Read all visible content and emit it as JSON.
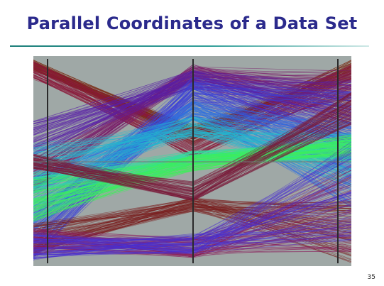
{
  "slide": {
    "title": "Parallel Coordinates of a Data Set",
    "page_number": "35"
  },
  "plot": {
    "background": "#9fa8a6",
    "axis_color": "#2a2a2a",
    "midline_color": "#6f7877",
    "axis_count": 3,
    "palette": [
      "#7a1f1f",
      "#8b1a5a",
      "#6a1fa0",
      "#3f3fd6",
      "#2f7fe0",
      "#22c6c0",
      "#3cf06a"
    ],
    "bundles": [
      {
        "color": "#7a2a12",
        "from": [
          0.03,
          0.08
        ],
        "mid": [
          0.32,
          0.42
        ],
        "to": [
          0.03,
          0.12
        ]
      },
      {
        "color": "#8b1a3a",
        "from": [
          0.04,
          0.12
        ],
        "mid": [
          0.35,
          0.5
        ],
        "to": [
          0.05,
          0.2
        ]
      },
      {
        "color": "#7a1b6a",
        "from": [
          0.45,
          0.6
        ],
        "mid": [
          0.02,
          0.1
        ],
        "to": [
          0.05,
          0.3
        ]
      },
      {
        "color": "#5a1fa8",
        "from": [
          0.28,
          0.45
        ],
        "mid": [
          0.05,
          0.15
        ],
        "to": [
          0.1,
          0.4
        ]
      },
      {
        "color": "#3a40d8",
        "from": [
          0.7,
          0.92
        ],
        "mid": [
          0.08,
          0.22
        ],
        "to": [
          0.15,
          0.55
        ]
      },
      {
        "color": "#2d6fe0",
        "from": [
          0.55,
          0.8
        ],
        "mid": [
          0.2,
          0.3
        ],
        "to": [
          0.3,
          0.7
        ]
      },
      {
        "color": "#22b8d0",
        "from": [
          0.4,
          0.65
        ],
        "mid": [
          0.28,
          0.38
        ],
        "to": [
          0.35,
          0.6
        ]
      },
      {
        "color": "#2fe0a0",
        "from": [
          0.55,
          0.75
        ],
        "mid": [
          0.45,
          0.52
        ],
        "to": [
          0.4,
          0.5
        ]
      },
      {
        "color": "#3cf05a",
        "from": [
          0.58,
          0.78
        ],
        "mid": [
          0.47,
          0.55
        ],
        "to": [
          0.38,
          0.48
        ]
      },
      {
        "color": "#7a1f1f",
        "from": [
          0.8,
          0.95
        ],
        "mid": [
          0.68,
          0.75
        ],
        "to": [
          0.7,
          0.98
        ]
      },
      {
        "color": "#8b1a5a",
        "from": [
          0.84,
          0.96
        ],
        "mid": [
          0.88,
          0.98
        ],
        "to": [
          0.55,
          0.95
        ]
      },
      {
        "color": "#4a2fd0",
        "from": [
          0.86,
          0.98
        ],
        "mid": [
          0.86,
          0.96
        ],
        "to": [
          0.45,
          0.9
        ]
      },
      {
        "color": "#7a1b3a",
        "from": [
          0.48,
          0.55
        ],
        "mid": [
          0.6,
          0.7
        ],
        "to": [
          0.2,
          0.35
        ]
      }
    ]
  }
}
